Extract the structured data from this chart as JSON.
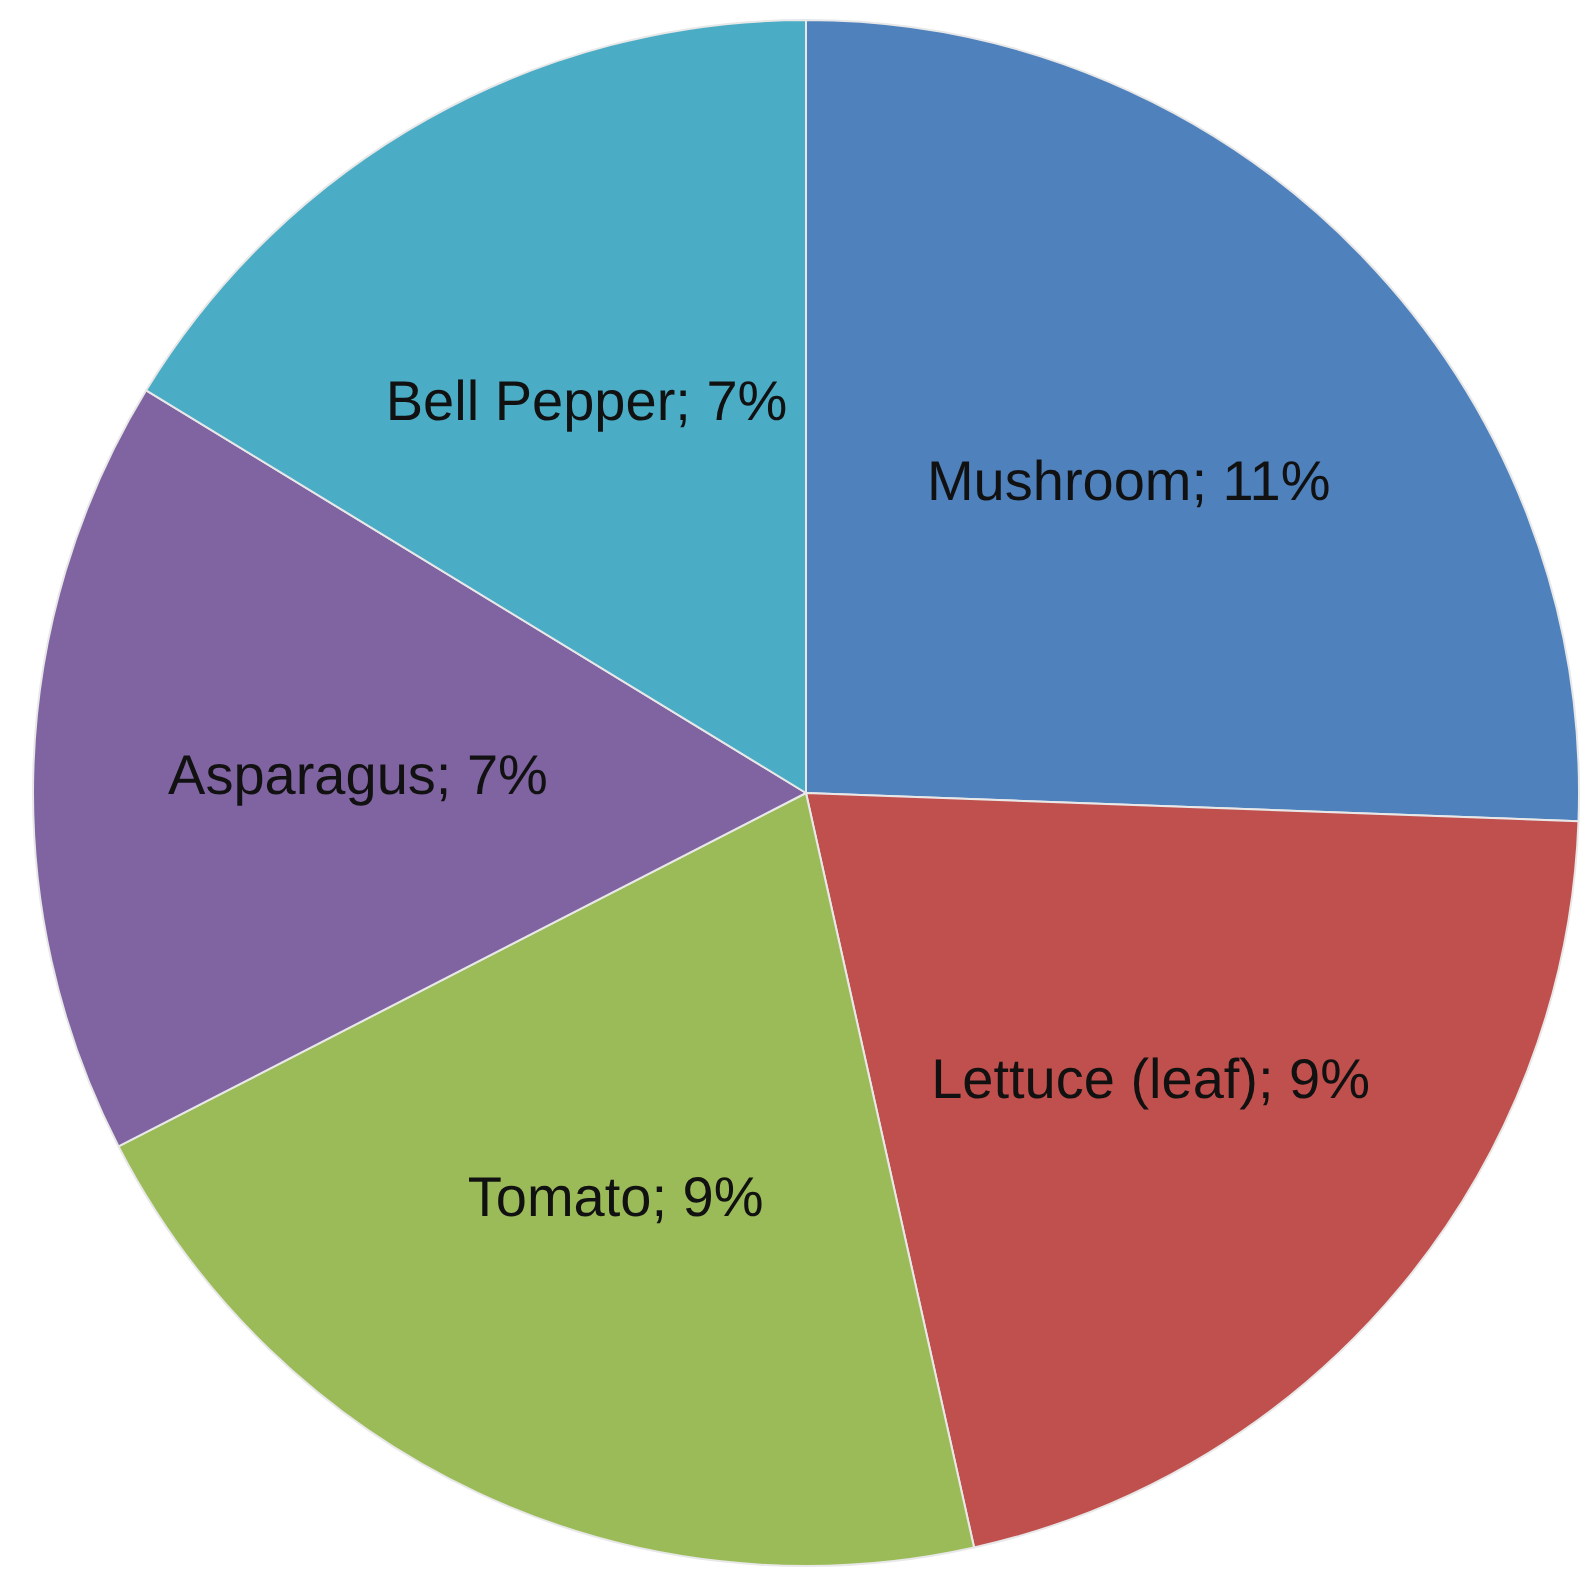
{
  "chart_data": {
    "type": "pie",
    "categories": [
      "Mushroom",
      "Lettuce (leaf)",
      "Tomato",
      "Asparagus",
      "Bell Pepper"
    ],
    "values": [
      11,
      9,
      9,
      7,
      7
    ],
    "value_labels": [
      "11%",
      "9%",
      "9%",
      "7%",
      "7%"
    ],
    "data_labels": true,
    "colors": [
      "#4f81bd",
      "#c0504d",
      "#9bbb59",
      "#8064a2",
      "#4bacc6"
    ],
    "legend": false
  }
}
